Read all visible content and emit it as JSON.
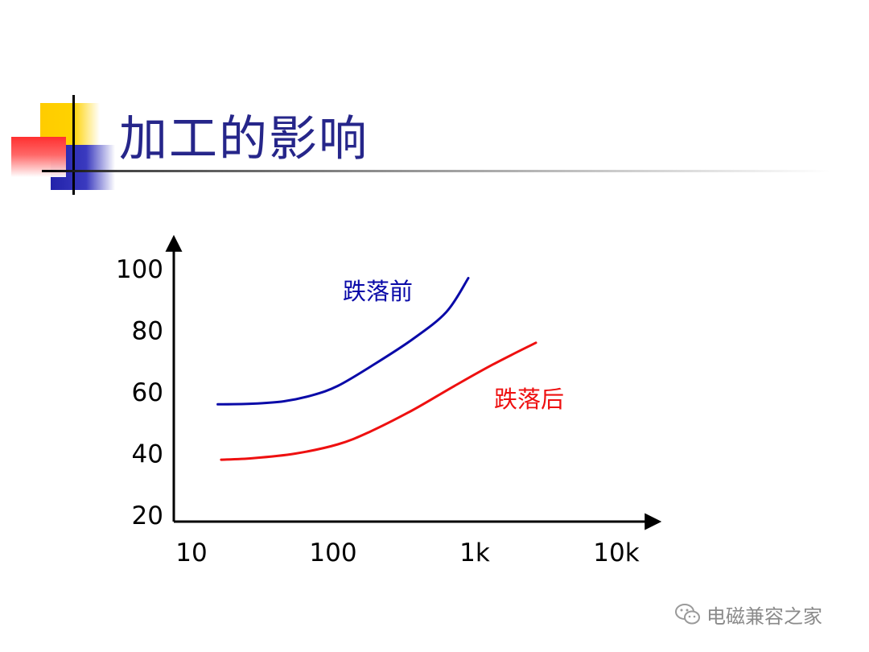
{
  "slide": {
    "title": "加工的影响",
    "accent_colors": {
      "yellow": "#ffcc00",
      "red": "#ff3030",
      "blue": "#2222aa"
    }
  },
  "watermark": {
    "text": "电磁兼容之家",
    "icon": "wechat-icon"
  },
  "chart_data": {
    "type": "line",
    "title": "",
    "xlabel": "",
    "ylabel": "",
    "xscale": "log",
    "x_tick_labels": [
      "10",
      "100",
      "1k",
      "10k"
    ],
    "x_ticks": [
      10,
      100,
      1000,
      10000
    ],
    "y_tick_labels": [
      "20",
      "40",
      "60",
      "80",
      "100"
    ],
    "y_ticks": [
      20,
      40,
      60,
      80,
      100
    ],
    "grid": false,
    "series": [
      {
        "name": "跌落前",
        "color": "#0a0aa8",
        "points": [
          [
            17,
            56
          ],
          [
            30,
            56.2
          ],
          [
            50,
            57
          ],
          [
            80,
            59
          ],
          [
            120,
            62
          ],
          [
            200,
            68
          ],
          [
            400,
            77
          ],
          [
            700,
            86
          ],
          [
            1000,
            97
          ]
        ]
      },
      {
        "name": "跌落后",
        "color": "#ee1010",
        "points": [
          [
            18,
            38
          ],
          [
            30,
            38.5
          ],
          [
            60,
            40
          ],
          [
            120,
            43
          ],
          [
            200,
            47
          ],
          [
            400,
            54
          ],
          [
            800,
            62
          ],
          [
            1500,
            69
          ],
          [
            3000,
            76
          ]
        ]
      }
    ]
  }
}
